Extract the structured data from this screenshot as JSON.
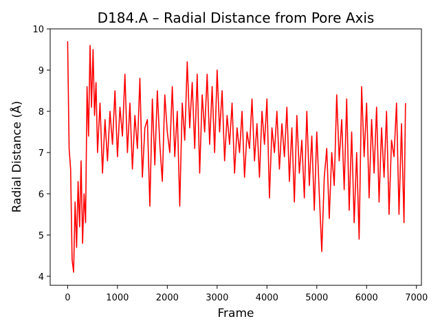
{
  "chart_data": {
    "type": "line",
    "title": "D184.A – Radial Distance from Pore Axis",
    "xlabel": "Frame",
    "ylabel": "Radial Distance (Å)",
    "xlim": [
      -350,
      7100
    ],
    "ylim": [
      3.78,
      10.0
    ],
    "xticks": [
      0,
      1000,
      2000,
      3000,
      4000,
      5000,
      6000,
      7000
    ],
    "yticks": [
      4,
      5,
      6,
      7,
      8,
      9,
      10
    ],
    "grid": false,
    "legend": "none",
    "colors": {
      "series": "#ff0000"
    },
    "series": [
      {
        "color": "#ff0000",
        "x": [
          0,
          30,
          60,
          90,
          120,
          150,
          180,
          210,
          240,
          270,
          300,
          330,
          360,
          390,
          420,
          450,
          480,
          510,
          540,
          570,
          600,
          650,
          700,
          750,
          800,
          850,
          900,
          950,
          1000,
          1050,
          1100,
          1150,
          1200,
          1250,
          1300,
          1350,
          1400,
          1450,
          1500,
          1550,
          1600,
          1650,
          1700,
          1750,
          1800,
          1850,
          1900,
          1950,
          2000,
          2050,
          2100,
          2150,
          2200,
          2250,
          2300,
          2350,
          2400,
          2450,
          2500,
          2550,
          2600,
          2650,
          2700,
          2750,
          2800,
          2850,
          2900,
          2950,
          3000,
          3050,
          3100,
          3150,
          3200,
          3250,
          3300,
          3350,
          3400,
          3450,
          3500,
          3550,
          3600,
          3650,
          3700,
          3750,
          3800,
          3850,
          3900,
          3950,
          4000,
          4050,
          4100,
          4150,
          4200,
          4250,
          4300,
          4350,
          4400,
          4450,
          4500,
          4550,
          4600,
          4650,
          4700,
          4750,
          4800,
          4850,
          4900,
          4950,
          5000,
          5050,
          5100,
          5150,
          5200,
          5250,
          5300,
          5350,
          5400,
          5450,
          5500,
          5550,
          5600,
          5650,
          5700,
          5750,
          5800,
          5850,
          5900,
          5950,
          6000,
          6050,
          6100,
          6150,
          6200,
          6250,
          6300,
          6350,
          6400,
          6450,
          6500,
          6550,
          6600,
          6650,
          6700,
          6750,
          6780
        ],
        "y": [
          9.7,
          7.1,
          6.6,
          4.4,
          4.1,
          5.8,
          4.7,
          6.3,
          5.2,
          6.8,
          4.8,
          6.0,
          5.3,
          8.6,
          7.4,
          9.6,
          8.1,
          9.5,
          7.9,
          8.7,
          7.0,
          8.2,
          6.5,
          7.8,
          6.8,
          8.0,
          7.2,
          8.5,
          6.9,
          8.1,
          7.4,
          8.9,
          7.0,
          8.2,
          6.6,
          7.9,
          7.1,
          8.8,
          6.4,
          7.6,
          7.8,
          5.7,
          8.3,
          6.7,
          8.5,
          7.2,
          6.3,
          8.4,
          7.5,
          7.0,
          8.6,
          6.9,
          8.0,
          5.7,
          8.2,
          7.3,
          9.2,
          7.6,
          8.7,
          7.1,
          8.9,
          6.5,
          8.4,
          7.5,
          8.9,
          7.2,
          8.6,
          7.0,
          9.0,
          7.5,
          8.5,
          6.8,
          7.9,
          7.2,
          8.2,
          6.5,
          7.6,
          7.0,
          8.0,
          6.4,
          7.5,
          7.1,
          8.3,
          6.8,
          7.7,
          6.4,
          8.0,
          7.2,
          8.3,
          5.9,
          7.6,
          7.0,
          8.0,
          6.6,
          7.7,
          6.9,
          8.1,
          6.3,
          7.6,
          5.8,
          7.9,
          6.5,
          7.3,
          5.9,
          8.0,
          6.2,
          7.4,
          5.6,
          7.5,
          6.0,
          4.6,
          6.4,
          7.1,
          5.4,
          7.0,
          6.2,
          8.4,
          6.8,
          7.8,
          6.1,
          8.3,
          5.6,
          7.5,
          5.3,
          7.0,
          4.9,
          8.6,
          6.9,
          8.2,
          5.9,
          7.8,
          6.5,
          8.1,
          5.8,
          7.6,
          6.4,
          8.0,
          5.5,
          7.3,
          6.9,
          8.2,
          5.5,
          7.7,
          5.3,
          8.2
        ]
      }
    ]
  }
}
